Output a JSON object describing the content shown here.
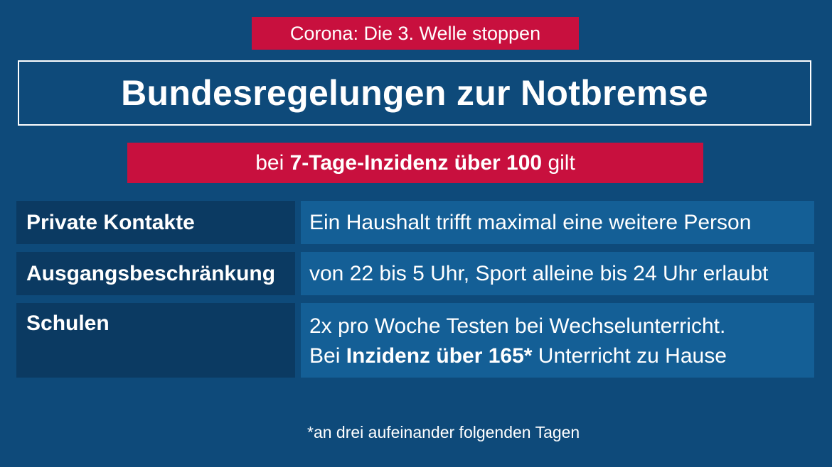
{
  "kicker": "Corona: Die 3. Welle stoppen",
  "title": "Bundesregelungen zur Notbremse",
  "subtitle": {
    "prefix": "bei ",
    "bold": "7-Tage-Inzidenz über 100",
    "suffix": " gilt"
  },
  "rows": [
    {
      "label": "Private Kontakte",
      "text": "Ein Haushalt trifft maximal eine weitere Person"
    },
    {
      "label": "Ausgangsbeschränkung",
      "text": "von 22 bis 5 Uhr, Sport alleine bis 24 Uhr erlaubt"
    },
    {
      "label": "Schulen",
      "line1": "2x pro Woche Testen bei Wechselunterricht.",
      "line2_prefix": "Bei ",
      "line2_bold": "Inzidenz über 165*",
      "line2_suffix": " Unterricht zu Hause"
    }
  ],
  "footnote": "*an drei aufeinander folgenden Tagen",
  "colors": {
    "background": "#0e4a7a",
    "accent_red": "#c8103e",
    "label_cell": "#0b3a62",
    "value_cell": "#145f96"
  }
}
